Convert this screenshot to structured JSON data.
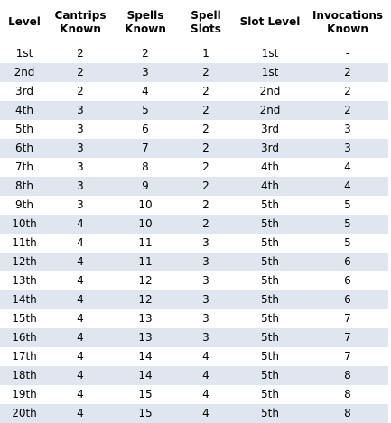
{
  "table": {
    "headers": [
      {
        "line1": "Level",
        "line2": ""
      },
      {
        "line1": "Cantrips",
        "line2": "Known"
      },
      {
        "line1": "Spells",
        "line2": "Known"
      },
      {
        "line1": "Spell",
        "line2": "Slots"
      },
      {
        "line1": "Slot Level",
        "line2": ""
      },
      {
        "line1": "Invocations",
        "line2": "Known"
      }
    ],
    "rows": [
      [
        "1st",
        "2",
        "2",
        "1",
        "1st",
        "-"
      ],
      [
        "2nd",
        "2",
        "3",
        "2",
        "1st",
        "2"
      ],
      [
        "3rd",
        "2",
        "4",
        "2",
        "2nd",
        "2"
      ],
      [
        "4th",
        "3",
        "5",
        "2",
        "2nd",
        "2"
      ],
      [
        "5th",
        "3",
        "6",
        "2",
        "3rd",
        "3"
      ],
      [
        "6th",
        "3",
        "7",
        "2",
        "3rd",
        "3"
      ],
      [
        "7th",
        "3",
        "8",
        "2",
        "4th",
        "4"
      ],
      [
        "8th",
        "3",
        "9",
        "2",
        "4th",
        "4"
      ],
      [
        "9th",
        "3",
        "10",
        "2",
        "5th",
        "5"
      ],
      [
        "10th",
        "4",
        "10",
        "2",
        "5th",
        "5"
      ],
      [
        "11th",
        "4",
        "11",
        "3",
        "5th",
        "5"
      ],
      [
        "12th",
        "4",
        "11",
        "3",
        "5th",
        "6"
      ],
      [
        "13th",
        "4",
        "12",
        "3",
        "5th",
        "6"
      ],
      [
        "14th",
        "4",
        "12",
        "3",
        "5th",
        "6"
      ],
      [
        "15th",
        "4",
        "13",
        "3",
        "5th",
        "7"
      ],
      [
        "16th",
        "4",
        "13",
        "3",
        "5th",
        "7"
      ],
      [
        "17th",
        "4",
        "14",
        "4",
        "5th",
        "7"
      ],
      [
        "18th",
        "4",
        "14",
        "4",
        "5th",
        "8"
      ],
      [
        "19th",
        "4",
        "15",
        "4",
        "5th",
        "8"
      ],
      [
        "20th",
        "4",
        "15",
        "4",
        "5th",
        "8"
      ]
    ]
  },
  "colors": {
    "stripe": "#dfe6f0",
    "background": "#ffffff",
    "text": "#000000"
  }
}
